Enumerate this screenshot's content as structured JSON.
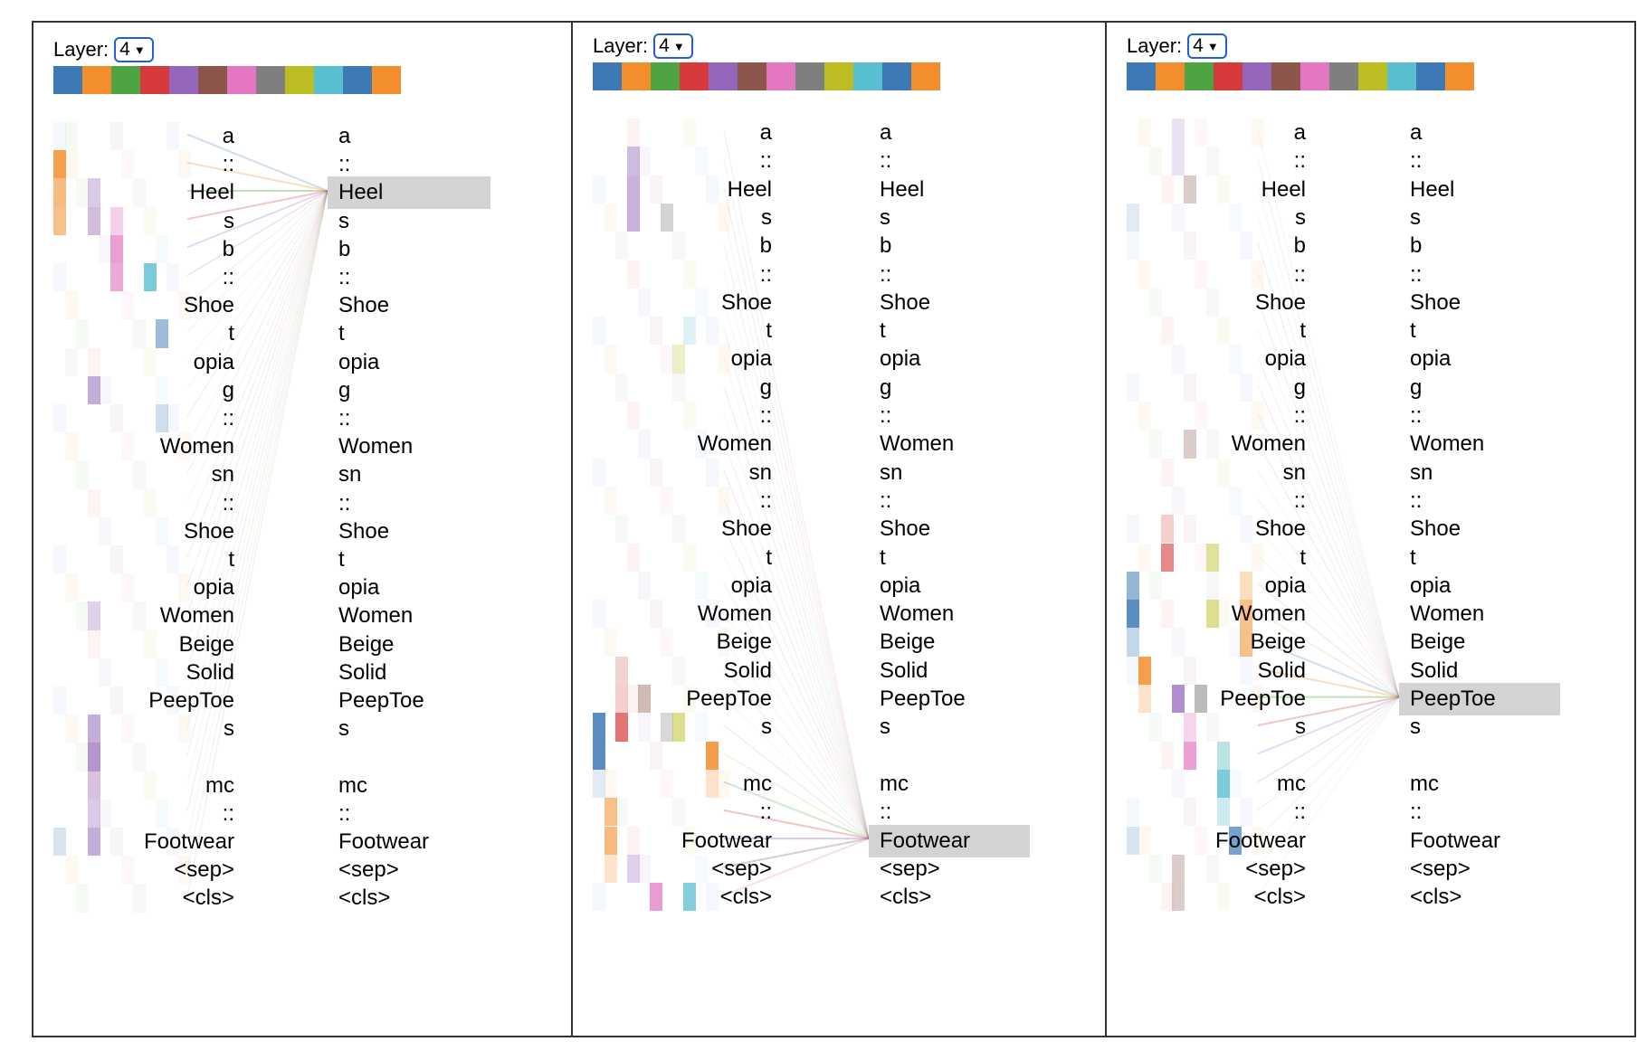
{
  "panels": [
    {
      "layer_label": "Layer:",
      "layer_value": "4",
      "selected_token": "Heel",
      "selected_index": 2
    },
    {
      "layer_label": "Layer:",
      "layer_value": "4",
      "selected_token": "Footwear",
      "selected_index": 25
    },
    {
      "layer_label": "Layer:",
      "layer_value": "4",
      "selected_token": "PeepToe",
      "selected_index": 20
    }
  ],
  "tokens": [
    "a",
    "::",
    "Heel",
    "s",
    "b",
    "::",
    "Shoe",
    "t",
    "opia",
    "g",
    "::",
    "Women",
    "sn",
    "::",
    "Shoe",
    "t",
    "opia",
    "Women",
    "Beige",
    "Solid",
    "PeepToe",
    "s",
    "",
    "mc",
    "::",
    "Footwear",
    "<sep>",
    "<cls>"
  ],
  "head_colors": [
    "#3d7ab5",
    "#f28e2c",
    "#4ea343",
    "#d63a3a",
    "#9467bd",
    "#8c564b",
    "#e377c2",
    "#7f7f7f",
    "#bcbd22",
    "#57bfd0",
    "#3d7ab5",
    "#f28e2c"
  ],
  "icons": {
    "dropdown": "chevron-down-icon"
  }
}
